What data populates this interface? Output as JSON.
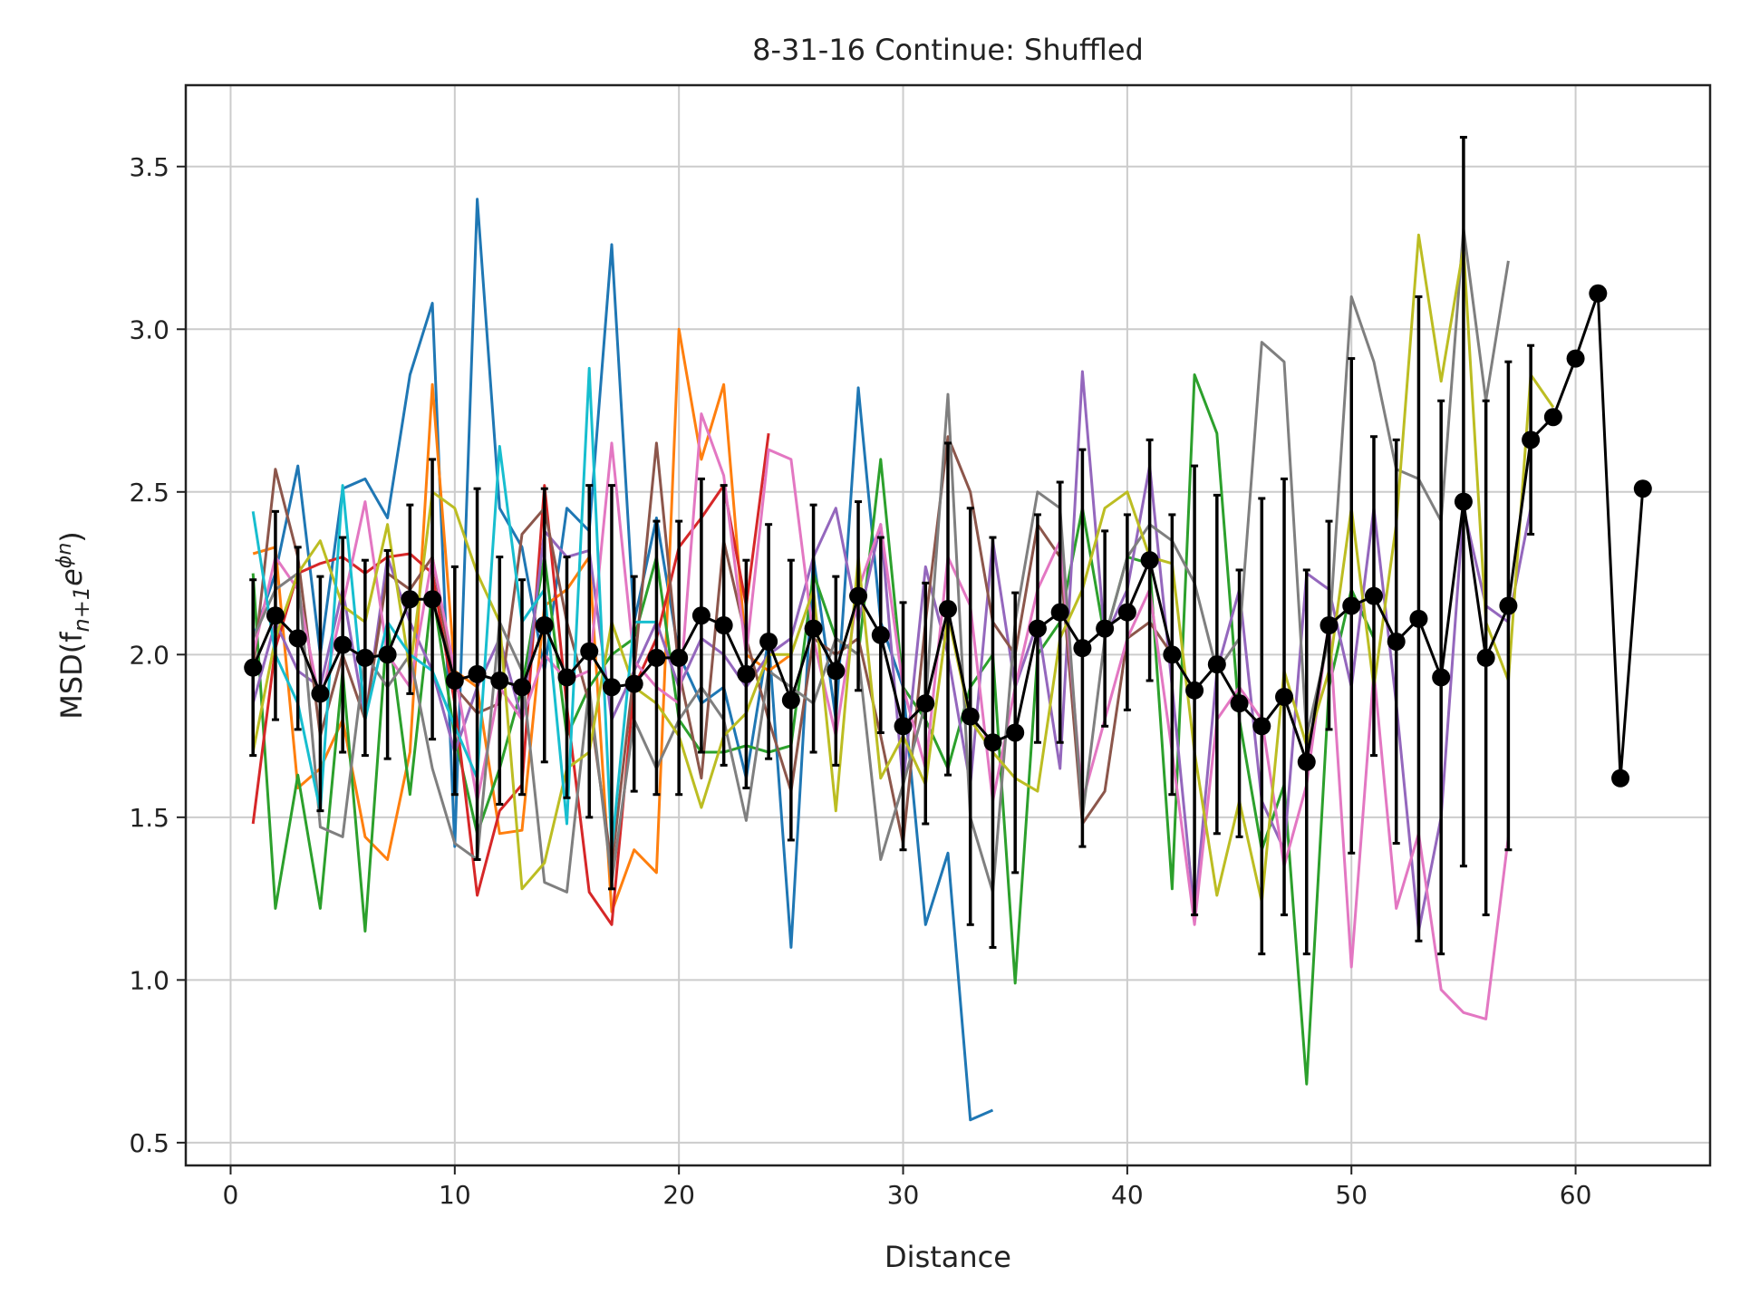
{
  "chart_data": {
    "type": "line",
    "title": "8-31-16 Continue: Shuffled",
    "xlabel": "Distance",
    "ylabel": "MSD(f",
    "ylabel_sub": "n+1",
    "ylabel_mid": "e",
    "ylabel_sup": "ϕn",
    "ylabel_end": ")",
    "xlim": [
      -2,
      66
    ],
    "ylim": [
      0.43,
      3.75
    ],
    "x_ticks": [
      0,
      10,
      20,
      30,
      40,
      50,
      60
    ],
    "x_tick_labels": [
      "0",
      "10",
      "20",
      "30",
      "40",
      "50",
      "60"
    ],
    "y_ticks": [
      0.5,
      1.0,
      1.5,
      2.0,
      2.5,
      3.0,
      3.5
    ],
    "y_tick_labels": [
      "0.5",
      "1.0",
      "1.5",
      "2.0",
      "2.5",
      "3.0",
      "3.5"
    ],
    "grid": true,
    "series": [
      {
        "color": "#1f77b4",
        "x": [
          1,
          2,
          3,
          4,
          5,
          6,
          7,
          8,
          9,
          10,
          11,
          12,
          13,
          14,
          15,
          16,
          17,
          18,
          19,
          20,
          21,
          22,
          23,
          24,
          25,
          26,
          27,
          28,
          29,
          30,
          31,
          32,
          33,
          34
        ],
        "values": [
          2.05,
          2.25,
          2.58,
          2.0,
          2.51,
          2.54,
          2.42,
          2.86,
          3.08,
          1.41,
          3.4,
          2.45,
          2.33,
          1.95,
          2.45,
          2.38,
          3.26,
          2.1,
          2.42,
          2.0,
          1.85,
          1.9,
          1.62,
          2.05,
          1.1,
          2.3,
          1.8,
          2.82,
          2.1,
          1.9,
          1.17,
          1.39,
          0.57,
          0.6
        ]
      },
      {
        "color": "#ff7f0e",
        "x": [
          1,
          2,
          3,
          4,
          5,
          6,
          7,
          8,
          9,
          10,
          11,
          12,
          13,
          14,
          15,
          16,
          17,
          18,
          19,
          20,
          21,
          22,
          23,
          24,
          25
        ],
        "values": [
          2.31,
          2.33,
          1.59,
          1.65,
          1.8,
          1.44,
          1.37,
          1.7,
          2.83,
          1.95,
          1.9,
          1.45,
          1.46,
          2.15,
          2.2,
          2.3,
          1.21,
          1.4,
          1.33,
          3.0,
          2.6,
          2.83,
          2.0,
          1.95,
          2.0
        ]
      },
      {
        "color": "#2ca02c",
        "x": [
          1,
          2,
          3,
          4,
          5,
          6,
          7,
          8,
          9,
          10,
          11,
          12,
          13,
          14,
          15,
          16,
          17,
          18,
          19,
          20,
          21,
          22,
          23,
          24,
          25,
          26,
          27,
          28,
          29,
          30,
          31,
          32,
          33,
          34,
          35,
          36,
          37,
          38,
          39,
          40,
          41,
          42,
          43,
          44,
          45,
          46,
          47,
          48,
          49,
          50,
          51
        ],
        "values": [
          2.25,
          1.22,
          1.63,
          1.22,
          1.95,
          1.15,
          2.1,
          1.57,
          2.2,
          1.75,
          1.45,
          1.65,
          1.9,
          2.3,
          1.75,
          1.9,
          2.0,
          2.05,
          2.3,
          1.8,
          1.7,
          1.7,
          1.72,
          1.7,
          1.72,
          2.25,
          2.05,
          2.0,
          2.6,
          1.9,
          1.8,
          1.65,
          1.9,
          2.0,
          0.99,
          2.0,
          2.1,
          2.45,
          2.05,
          2.3,
          2.28,
          1.28,
          2.86,
          2.68,
          1.8,
          1.4,
          1.6,
          0.68,
          1.9,
          2.2,
          2.05
        ]
      },
      {
        "color": "#d62728",
        "x": [
          1,
          2,
          3,
          4,
          5,
          6,
          7,
          8,
          9,
          10,
          11,
          12,
          13,
          14,
          15,
          16,
          17,
          18,
          19,
          20,
          21,
          22,
          23,
          24
        ],
        "values": [
          1.48,
          2.02,
          2.25,
          2.28,
          2.3,
          2.25,
          2.3,
          2.31,
          2.25,
          1.85,
          1.26,
          1.52,
          1.6,
          2.52,
          1.84,
          1.27,
          1.17,
          1.9,
          2.05,
          2.33,
          2.42,
          2.52,
          2.15,
          2.68
        ]
      },
      {
        "color": "#9467bd",
        "x": [
          1,
          2,
          3,
          4,
          5,
          6,
          7,
          8,
          9,
          10,
          11,
          12,
          13,
          14,
          15,
          16,
          17,
          18,
          19,
          20,
          21,
          22,
          23,
          24,
          25,
          26,
          27,
          28,
          29,
          30,
          31,
          32,
          33,
          34,
          35,
          36,
          37,
          38,
          39,
          40,
          41,
          42,
          43,
          44,
          45,
          46,
          47,
          48,
          49,
          50,
          51,
          52,
          53,
          54,
          55,
          56,
          57,
          58
        ],
        "values": [
          1.85,
          2.1,
          1.95,
          1.9,
          2.2,
          1.8,
          2.3,
          2.1,
          1.95,
          1.7,
          1.9,
          2.05,
          1.8,
          2.38,
          2.3,
          2.32,
          1.8,
          1.95,
          2.1,
          1.9,
          2.05,
          2.0,
          1.9,
          2.0,
          2.05,
          2.3,
          2.45,
          2.1,
          2.4,
          1.6,
          2.27,
          2.0,
          1.6,
          2.35,
          1.9,
          2.1,
          1.65,
          2.87,
          2.05,
          2.2,
          2.58,
          1.9,
          1.2,
          1.95,
          2.2,
          1.55,
          1.4,
          2.25,
          2.2,
          1.9,
          2.45,
          1.85,
          1.15,
          1.5,
          2.45,
          2.15,
          2.1,
          2.45
        ]
      },
      {
        "color": "#8c564b",
        "x": [
          1,
          2,
          3,
          4,
          5,
          6,
          7,
          8,
          9,
          10,
          11,
          12,
          13,
          14,
          15,
          16,
          17,
          18,
          19,
          20,
          21,
          22,
          23,
          24,
          25,
          26,
          27,
          28,
          29,
          30,
          31,
          32,
          33,
          34,
          35,
          36,
          37,
          38,
          39,
          40,
          41,
          42
        ],
        "values": [
          1.95,
          2.57,
          2.3,
          1.75,
          2.0,
          1.8,
          2.25,
          2.2,
          2.3,
          1.9,
          1.82,
          1.85,
          2.37,
          2.45,
          2.1,
          1.85,
          1.35,
          1.95,
          2.65,
          1.95,
          1.62,
          2.35,
          2.05,
          1.8,
          1.58,
          2.05,
          2.0,
          2.05,
          1.75,
          1.42,
          2.1,
          2.67,
          2.5,
          2.1,
          2.0,
          2.4,
          2.3,
          1.48,
          1.58,
          2.05,
          2.1,
          2.0
        ]
      },
      {
        "color": "#e377c2",
        "x": [
          1,
          2,
          3,
          4,
          5,
          6,
          7,
          8,
          9,
          10,
          11,
          12,
          13,
          14,
          15,
          16,
          17,
          18,
          19,
          20,
          21,
          22,
          23,
          24,
          25,
          26,
          27,
          28,
          29,
          30,
          31,
          32,
          33,
          34,
          35,
          36,
          37,
          38,
          39,
          40,
          41,
          42,
          43,
          44,
          45,
          46,
          47,
          48,
          49,
          50,
          51,
          52,
          53,
          54,
          55,
          56,
          57
        ],
        "values": [
          2.0,
          2.3,
          2.2,
          1.85,
          2.15,
          2.47,
          2.0,
          1.9,
          2.3,
          1.95,
          1.55,
          1.9,
          1.8,
          2.0,
          1.92,
          1.95,
          2.65,
          1.98,
          1.9,
          1.85,
          2.74,
          2.55,
          2.0,
          2.63,
          2.6,
          2.05,
          1.75,
          2.2,
          2.4,
          1.9,
          1.65,
          2.3,
          2.15,
          1.55,
          1.9,
          2.2,
          2.35,
          1.55,
          1.8,
          2.05,
          2.2,
          1.7,
          1.17,
          1.8,
          1.9,
          1.8,
          1.35,
          1.6,
          2.1,
          1.04,
          1.95,
          1.22,
          1.45,
          0.97,
          0.9,
          0.88,
          1.44
        ]
      },
      {
        "color": "#7f7f7f",
        "x": [
          1,
          2,
          3,
          4,
          5,
          6,
          7,
          8,
          9,
          10,
          11,
          12,
          13,
          14,
          15,
          16,
          17,
          18,
          19,
          20,
          21,
          22,
          23,
          24,
          25,
          26,
          27,
          28,
          29,
          30,
          31,
          32,
          33,
          34,
          35,
          36,
          37,
          38,
          39,
          40,
          41,
          42,
          43,
          44,
          45,
          46,
          47,
          48,
          49,
          50,
          51,
          52,
          53,
          54,
          55,
          56,
          57
        ],
        "values": [
          2.05,
          2.2,
          2.25,
          1.47,
          1.44,
          2.0,
          1.9,
          2.0,
          1.65,
          1.42,
          1.37,
          2.1,
          1.95,
          1.3,
          1.27,
          1.9,
          1.3,
          1.8,
          1.65,
          1.8,
          1.9,
          1.8,
          1.49,
          1.95,
          1.9,
          1.85,
          2.05,
          2.0,
          1.37,
          1.6,
          1.85,
          2.8,
          1.5,
          1.27,
          2.1,
          2.5,
          2.45,
          1.5,
          2.05,
          2.3,
          2.4,
          2.35,
          2.22,
          1.95,
          2.05,
          2.96,
          2.9,
          1.75,
          2.05,
          3.1,
          2.9,
          2.57,
          2.54,
          2.41,
          3.31,
          2.78,
          3.21
        ]
      },
      {
        "color": "#bcbd22",
        "x": [
          1,
          2,
          3,
          4,
          5,
          6,
          7,
          8,
          9,
          10,
          11,
          12,
          13,
          14,
          15,
          16,
          17,
          18,
          19,
          20,
          21,
          22,
          23,
          24,
          25,
          26,
          27,
          28,
          29,
          30,
          31,
          32,
          33,
          34,
          35,
          36,
          37,
          38,
          39,
          40,
          41,
          42,
          43,
          44,
          45,
          46,
          47,
          48,
          49,
          50,
          51,
          52,
          53,
          54,
          55,
          56,
          57,
          58,
          59
        ],
        "values": [
          1.7,
          2.05,
          2.25,
          2.35,
          2.15,
          2.1,
          2.4,
          1.95,
          2.5,
          2.45,
          2.25,
          2.1,
          1.28,
          1.36,
          1.65,
          1.7,
          2.1,
          1.9,
          1.85,
          1.75,
          1.53,
          1.75,
          1.82,
          2.0,
          2.0,
          2.2,
          1.52,
          2.3,
          1.62,
          1.75,
          1.6,
          2.12,
          1.8,
          1.7,
          1.62,
          1.58,
          2.05,
          2.2,
          2.45,
          2.5,
          2.3,
          2.28,
          1.7,
          1.26,
          1.55,
          1.24,
          1.95,
          1.72,
          1.95,
          2.45,
          1.9,
          2.4,
          3.29,
          2.84,
          3.25,
          2.1,
          1.92,
          2.86,
          2.76
        ]
      },
      {
        "color": "#17becf",
        "x": [
          1,
          2,
          3,
          4,
          5,
          6,
          7,
          8,
          9,
          10,
          11,
          12,
          13,
          14,
          15,
          16,
          17,
          18,
          19
        ],
        "values": [
          2.44,
          2.0,
          1.85,
          1.52,
          2.52,
          1.8,
          2.1,
          2.0,
          1.95,
          1.78,
          1.62,
          2.64,
          2.1,
          2.2,
          1.48,
          2.88,
          1.4,
          2.1,
          2.1
        ]
      }
    ],
    "mean_series": {
      "color": "#000000",
      "x": [
        1,
        2,
        3,
        4,
        5,
        6,
        7,
        8,
        9,
        10,
        11,
        12,
        13,
        14,
        15,
        16,
        17,
        18,
        19,
        20,
        21,
        22,
        23,
        24,
        25,
        26,
        27,
        28,
        29,
        30,
        31,
        32,
        33,
        34,
        35,
        36,
        37,
        38,
        39,
        40,
        41,
        42,
        43,
        44,
        45,
        46,
        47,
        48,
        49,
        50,
        51,
        52,
        53,
        54,
        55,
        56,
        57,
        58,
        59,
        60,
        61,
        62,
        63
      ],
      "values": [
        1.96,
        2.12,
        2.05,
        1.88,
        2.03,
        1.99,
        2.0,
        2.17,
        2.17,
        1.92,
        1.94,
        1.92,
        1.9,
        2.09,
        1.93,
        2.01,
        1.9,
        1.91,
        1.99,
        1.99,
        2.12,
        2.09,
        1.94,
        2.04,
        1.86,
        2.08,
        1.95,
        2.18,
        2.06,
        1.78,
        1.85,
        2.14,
        1.81,
        1.73,
        1.76,
        2.08,
        2.13,
        2.02,
        2.08,
        2.13,
        2.29,
        2.0,
        1.89,
        1.97,
        1.85,
        1.78,
        1.87,
        1.67,
        2.09,
        2.15,
        2.18,
        2.04,
        2.11,
        1.93,
        2.47,
        1.99,
        2.15,
        2.66,
        2.73,
        2.91,
        3.11,
        1.62,
        2.51
      ],
      "errors": [
        0.27,
        0.32,
        0.28,
        0.36,
        0.33,
        0.3,
        0.32,
        0.29,
        0.43,
        0.35,
        0.57,
        0.38,
        0.33,
        0.42,
        0.37,
        0.51,
        0.62,
        0.33,
        0.42,
        0.42,
        0.42,
        0.43,
        0.35,
        0.36,
        0.43,
        0.38,
        0.29,
        0.29,
        0.3,
        0.38,
        0.37,
        0.51,
        0.64,
        0.63,
        0.43,
        0.35,
        0.4,
        0.61,
        0.3,
        0.3,
        0.37,
        0.43,
        0.69,
        0.52,
        0.41,
        0.7,
        0.67,
        0.59,
        0.32,
        0.76,
        0.49,
        0.62,
        0.99,
        0.85,
        1.12,
        0.79,
        0.75,
        0.29,
        0,
        0,
        0,
        0,
        0
      ]
    }
  }
}
